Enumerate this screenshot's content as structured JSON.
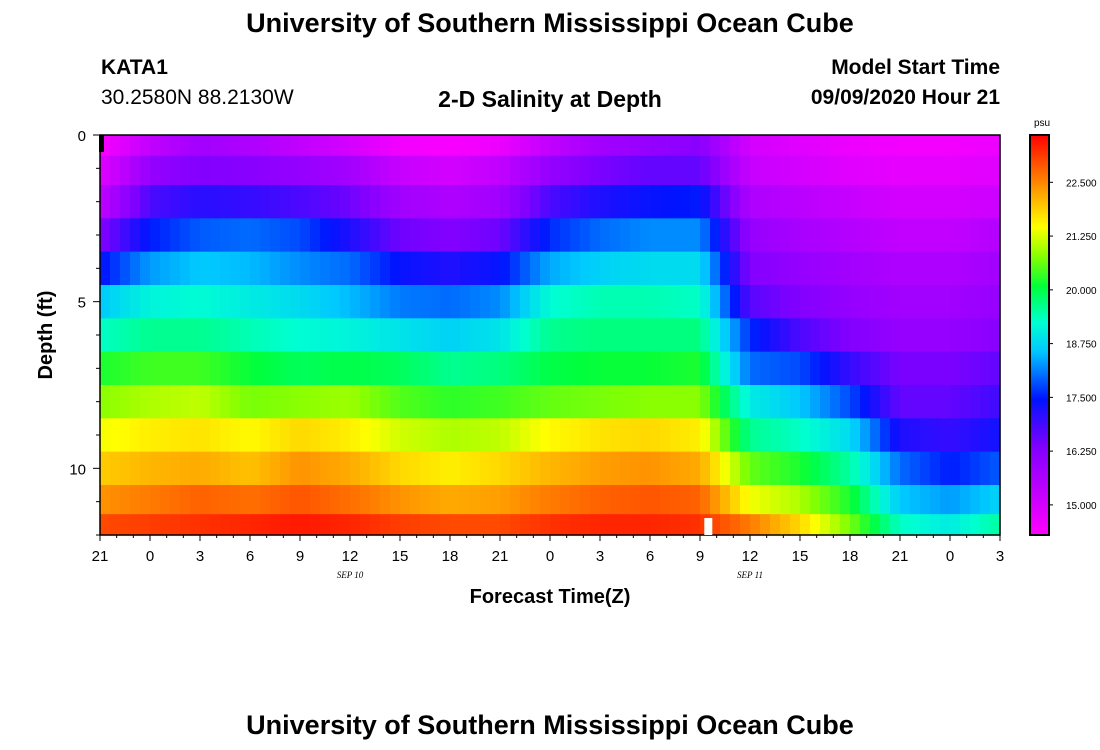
{
  "header": {
    "title_top": "University of Southern Mississippi Ocean Cube",
    "title_bottom": "University of Southern Mississippi Ocean Cube",
    "station": "KATA1",
    "coords": "30.2580N 88.2130W",
    "subtitle": "2-D Salinity at Depth",
    "model_label": "Model Start Time",
    "model_time": "09/09/2020 Hour 21"
  },
  "chart_data": {
    "type": "heatmap",
    "title": "2-D Salinity at Depth",
    "xlabel": "Forecast Time(Z)",
    "ylabel": "Depth (ft)",
    "x_range_hours": [
      0,
      54
    ],
    "x_tick_hours": [
      0,
      3,
      6,
      9,
      12,
      15,
      18,
      21,
      24,
      27,
      30,
      33,
      36,
      39,
      42,
      45,
      48,
      51,
      54
    ],
    "x_tick_labels": [
      "21",
      "0",
      "3",
      "6",
      "9",
      "12",
      "15",
      "18",
      "21",
      "0",
      "3",
      "6",
      "9",
      "12",
      "15",
      "18",
      "21",
      "0",
      "3"
    ],
    "date_labels": [
      {
        "text": "SEP 10",
        "hour": 15
      },
      {
        "text": "SEP 11",
        "hour": 39
      }
    ],
    "y_range_ft": [
      0,
      12
    ],
    "y_ticks": [
      0,
      5,
      10
    ],
    "y_tick_labels": [
      "0",
      "5",
      "10"
    ],
    "colorbar": {
      "unit": "psu",
      "min": 14.3,
      "max": 23.6,
      "ticks": [
        15.0,
        16.25,
        17.5,
        18.75,
        20.0,
        21.25,
        22.5
      ],
      "tick_labels": [
        "15.000",
        "16.250",
        "17.500",
        "18.750",
        "20.000",
        "21.250",
        "22.500"
      ]
    },
    "current_time_hour": 36.5,
    "depth_layers_ft": [
      0.25,
      1,
      2,
      3,
      4,
      5,
      6,
      7,
      8,
      9,
      10,
      11,
      11.75
    ],
    "time_hours": [
      0,
      3,
      6,
      9,
      12,
      15,
      18,
      21,
      24,
      27,
      30,
      33,
      36,
      39,
      42,
      45,
      48,
      51,
      54
    ],
    "salinity_psu": [
      [
        14.4,
        15.3,
        15.8,
        15.6,
        15.3,
        15.0,
        14.5,
        14.4,
        14.6,
        15.3,
        15.8,
        16.0,
        16.2,
        15.0,
        14.8,
        14.6,
        14.5,
        14.5,
        14.6
      ],
      [
        14.8,
        16.0,
        16.3,
        16.2,
        16.0,
        15.8,
        15.2,
        15.0,
        15.3,
        16.0,
        16.4,
        16.6,
        16.6,
        15.2,
        15.0,
        14.8,
        14.7,
        14.7,
        14.8
      ],
      [
        15.3,
        16.8,
        17.1,
        17.0,
        16.8,
        16.5,
        15.8,
        15.6,
        15.8,
        16.8,
        17.2,
        17.4,
        17.5,
        15.6,
        15.4,
        15.2,
        15.0,
        15.0,
        15.1
      ],
      [
        16.3,
        17.5,
        17.9,
        18.0,
        17.8,
        17.2,
        16.5,
        16.3,
        16.5,
        17.6,
        18.0,
        18.2,
        18.2,
        16.0,
        15.7,
        15.5,
        15.3,
        15.3,
        15.5
      ],
      [
        17.4,
        18.3,
        18.6,
        18.5,
        18.2,
        18.0,
        17.4,
        17.2,
        17.4,
        18.4,
        18.7,
        18.8,
        18.8,
        16.3,
        16.0,
        15.8,
        15.6,
        15.6,
        15.8
      ],
      [
        18.6,
        19.1,
        19.2,
        19.0,
        18.8,
        18.5,
        18.1,
        18.0,
        18.2,
        19.2,
        19.4,
        19.4,
        19.3,
        16.7,
        16.3,
        16.0,
        15.8,
        15.8,
        16.0
      ],
      [
        19.3,
        19.6,
        19.6,
        19.4,
        19.2,
        19.1,
        18.9,
        18.7,
        18.9,
        19.6,
        19.7,
        19.7,
        19.7,
        17.6,
        16.8,
        16.3,
        16.0,
        16.0,
        16.2
      ],
      [
        20.2,
        20.4,
        20.4,
        20.1,
        19.9,
        20.0,
        19.9,
        19.6,
        19.7,
        20.0,
        20.1,
        20.1,
        20.2,
        18.0,
        17.8,
        17.0,
        16.4,
        16.4,
        16.6
      ],
      [
        20.8,
        21.0,
        21.1,
        20.7,
        20.8,
        20.9,
        20.5,
        20.3,
        20.4,
        20.6,
        20.7,
        20.8,
        20.8,
        19.0,
        18.6,
        17.8,
        16.6,
        16.6,
        16.9
      ],
      [
        21.4,
        21.6,
        21.7,
        21.5,
        21.8,
        21.6,
        21.2,
        21.0,
        21.1,
        21.5,
        21.7,
        21.8,
        21.6,
        19.6,
        19.3,
        18.8,
        17.2,
        17.0,
        17.3
      ],
      [
        21.9,
        22.1,
        22.2,
        22.0,
        22.4,
        22.2,
        21.8,
        21.6,
        21.8,
        22.1,
        22.3,
        22.4,
        22.2,
        20.6,
        20.2,
        19.5,
        18.0,
        17.5,
        17.9
      ],
      [
        22.4,
        22.6,
        22.8,
        22.7,
        22.9,
        22.7,
        22.4,
        22.2,
        22.3,
        22.6,
        22.8,
        22.9,
        22.8,
        21.4,
        21.0,
        20.2,
        18.6,
        18.3,
        18.7
      ],
      [
        23.0,
        23.1,
        23.2,
        23.3,
        23.4,
        23.3,
        23.1,
        23.0,
        23.0,
        23.2,
        23.3,
        23.3,
        23.2,
        22.6,
        21.8,
        20.7,
        19.3,
        19.0,
        19.5
      ]
    ]
  }
}
